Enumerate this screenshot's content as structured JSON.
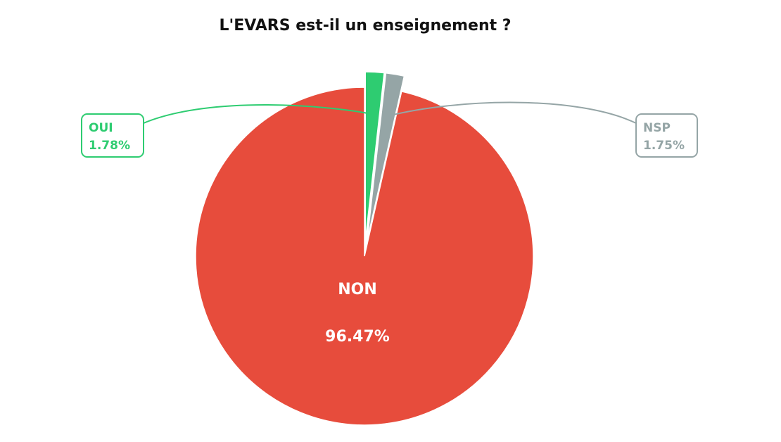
{
  "chart_data": {
    "type": "pie",
    "title": "L'EVARS est-il un enseignement ?",
    "start_angle_deg": 90,
    "direction": "clockwise",
    "slices": [
      {
        "key": "oui",
        "label": "OUI",
        "value": 1.78,
        "value_label": "1.78%",
        "color": "#2ecc71",
        "exploded": true,
        "label_style": "callout-left"
      },
      {
        "key": "nsp",
        "label": "NSP",
        "value": 1.75,
        "value_label": "1.75%",
        "color": "#95a5a6",
        "exploded": true,
        "label_style": "callout-right"
      },
      {
        "key": "non",
        "label": "NON",
        "value": 96.47,
        "value_label": "96.47%",
        "color": "#e74c3c",
        "exploded": false,
        "label_style": "inside"
      }
    ]
  }
}
